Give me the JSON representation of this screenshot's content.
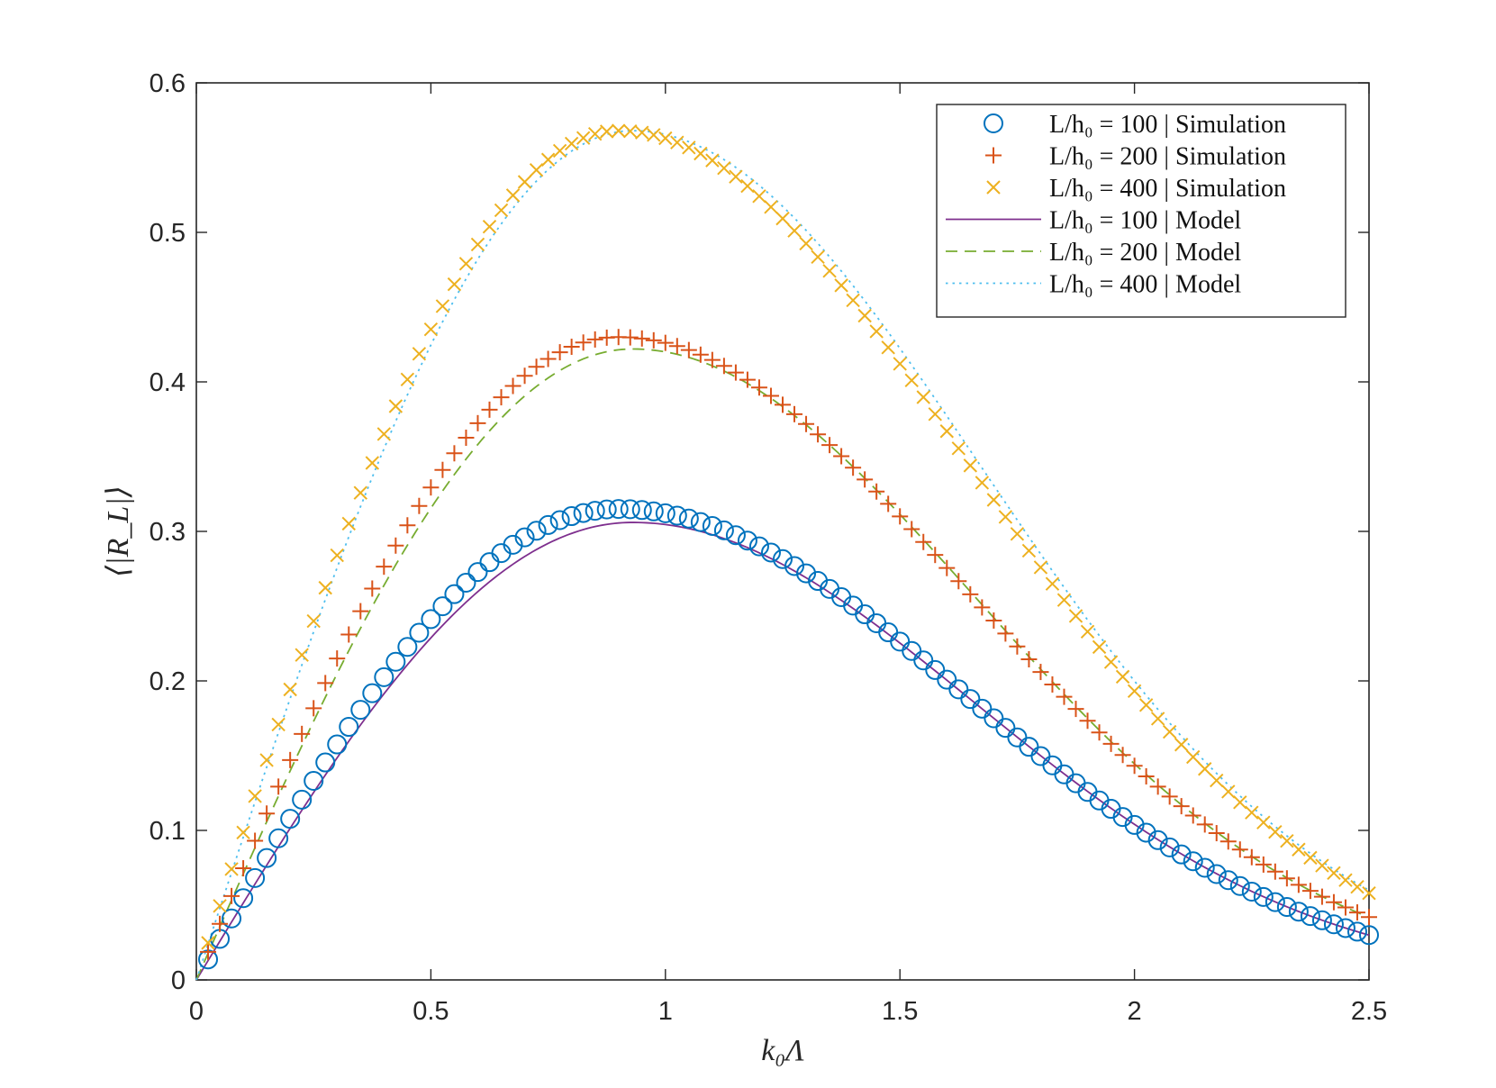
{
  "chart_data": {
    "type": "line",
    "xlabel": "k₀Λ",
    "ylabel": "⟨|R_L|⟩",
    "xlim": [
      0,
      2.5
    ],
    "ylim": [
      0,
      0.6
    ],
    "xticks": [
      0,
      0.5,
      1,
      1.5,
      2,
      2.5
    ],
    "xtick_labels": [
      "0",
      "0.5",
      "1",
      "1.5",
      "2",
      "2.5"
    ],
    "yticks": [
      0,
      0.1,
      0.2,
      0.3,
      0.4,
      0.5,
      0.6
    ],
    "ytick_labels": [
      "0",
      "0.1",
      "0.2",
      "0.3",
      "0.4",
      "0.5",
      "0.6"
    ],
    "legend_position": "top-right",
    "series": [
      {
        "name": "L/h₀ = 100 | Simulation",
        "kind": "marker",
        "marker": "circle",
        "color": "#0072BD",
        "peak_x": 0.9,
        "peak_y": 0.315,
        "end_y": 0.03
      },
      {
        "name": "L/h₀ = 200 | Simulation",
        "kind": "marker",
        "marker": "plus",
        "color": "#D95319",
        "peak_x": 0.9,
        "peak_y": 0.43,
        "end_y": 0.042
      },
      {
        "name": "L/h₀ = 400 | Simulation",
        "kind": "marker",
        "marker": "cross",
        "color": "#EDB120",
        "peak_x": 0.9,
        "peak_y": 0.568,
        "end_y": 0.058
      },
      {
        "name": "L/h₀ = 100 | Model",
        "kind": "line",
        "dash": "solid",
        "color": "#7E2F8E",
        "peak_x": 0.93,
        "peak_y": 0.306,
        "end_y": 0.03
      },
      {
        "name": "L/h₀ = 200 | Model",
        "kind": "line",
        "dash": "dashed",
        "color": "#77AC30",
        "peak_x": 0.93,
        "peak_y": 0.422,
        "end_y": 0.042
      },
      {
        "name": "L/h₀ = 400 | Model",
        "kind": "line",
        "dash": "dotted",
        "color": "#4DBEEE",
        "peak_x": 0.93,
        "peak_y": 0.568,
        "end_y": 0.06
      }
    ]
  }
}
